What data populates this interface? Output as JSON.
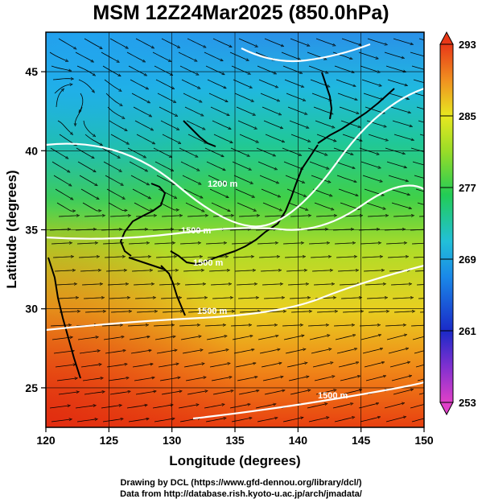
{
  "title": "MSM 12Z24Mar2025 (850.0hPa)",
  "map": {
    "x_axis": {
      "label": "Longitude (degrees)",
      "range": [
        120,
        150
      ],
      "ticks": [
        120,
        125,
        130,
        135,
        140,
        145,
        150
      ]
    },
    "y_axis": {
      "label": "Latitude  (degrees)",
      "range": [
        22.5,
        47.5
      ],
      "ticks": [
        25,
        30,
        35,
        40,
        45
      ]
    },
    "field": "temperature",
    "grid": true,
    "contour_labels": [
      "1200 m",
      "1500 m",
      "1500 m",
      "1500 m",
      "1500 m"
    ],
    "streamlines": true
  },
  "colorbar": {
    "min": 253,
    "max": 293,
    "ticks": [
      253,
      261,
      269,
      277,
      285,
      293
    ],
    "colors": [
      "#e040c8",
      "#1a2ac8",
      "#22b8f0",
      "#22cc55",
      "#e8e820",
      "#e83818"
    ]
  },
  "footer": {
    "line1": "Drawing by DCL (https://www.gfd-dennou.org/library/dcl/)",
    "line2": "Data from http://database.rish.kyoto-u.ac.jp/arch/jmadata/"
  }
}
